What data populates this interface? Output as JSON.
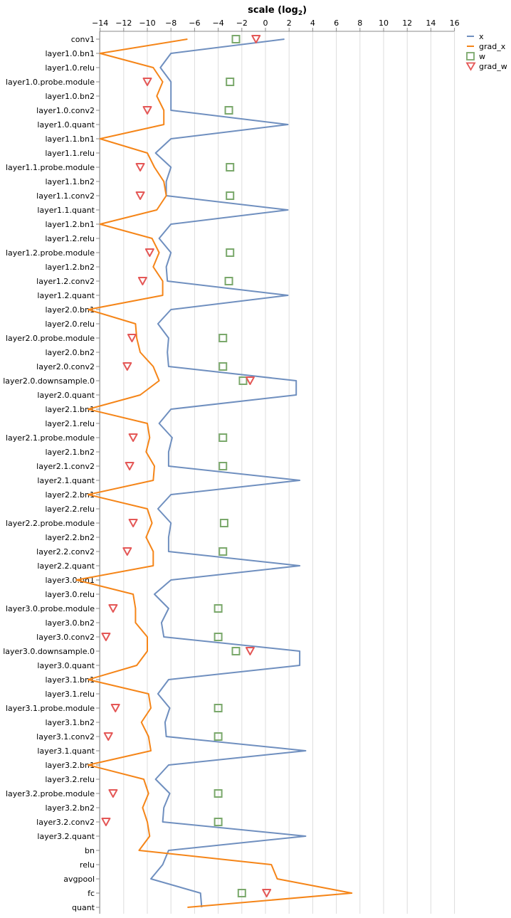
{
  "chart_data": {
    "type": "line",
    "title": "",
    "xlabel": "scale (log₂)",
    "xlabel_base": "scale (log",
    "xlabel_sub": "2",
    "xlabel_end": ")",
    "ylabel": "",
    "xlim": [
      -15,
      16
    ],
    "x_ticks": [
      -14,
      -12,
      -10,
      -8,
      -6,
      -4,
      -2,
      0,
      2,
      4,
      6,
      8,
      10,
      12,
      14,
      16
    ],
    "x_tick_labels": [
      "−14",
      "−12",
      "−10",
      "−8",
      "−6",
      "−4",
      "−2",
      "0",
      "2",
      "4",
      "6",
      "8",
      "10",
      "12",
      "14",
      "16"
    ],
    "grid": true,
    "legend_position": "top-right",
    "categories": [
      "conv1",
      "layer1.0.bn1",
      "layer1.0.relu",
      "layer1.0.probe.module",
      "layer1.0.bn2",
      "layer1.0.conv2",
      "layer1.0.quant",
      "layer1.1.bn1",
      "layer1.1.relu",
      "layer1.1.probe.module",
      "layer1.1.bn2",
      "layer1.1.conv2",
      "layer1.1.quant",
      "layer1.2.bn1",
      "layer1.2.relu",
      "layer1.2.probe.module",
      "layer1.2.bn2",
      "layer1.2.conv2",
      "layer1.2.quant",
      "layer2.0.bn1",
      "layer2.0.relu",
      "layer2.0.probe.module",
      "layer2.0.bn2",
      "layer2.0.conv2",
      "layer2.0.downsample.0",
      "layer2.0.quant",
      "layer2.1.bn1",
      "layer2.1.relu",
      "layer2.1.probe.module",
      "layer2.1.bn2",
      "layer2.1.conv2",
      "layer2.1.quant",
      "layer2.2.bn1",
      "layer2.2.relu",
      "layer2.2.probe.module",
      "layer2.2.bn2",
      "layer2.2.conv2",
      "layer2.2.quant",
      "layer3.0.bn1",
      "layer3.0.relu",
      "layer3.0.probe.module",
      "layer3.0.bn2",
      "layer3.0.conv2",
      "layer3.0.downsample.0",
      "layer3.0.quant",
      "layer3.1.bn1",
      "layer3.1.relu",
      "layer3.1.probe.module",
      "layer3.1.bn2",
      "layer3.1.conv2",
      "layer3.1.quant",
      "layer3.2.bn1",
      "layer3.2.relu",
      "layer3.2.probe.module",
      "layer3.2.bn2",
      "layer3.2.conv2",
      "layer3.2.quant",
      "bn",
      "relu",
      "avgpool",
      "fc",
      "quant"
    ],
    "series": [
      {
        "name": "x",
        "color": "#6f8fbf",
        "mark": "line",
        "values": [
          1.6,
          -8.0,
          -8.9,
          -8.0,
          -8.0,
          -8.0,
          1.9,
          -8.0,
          -9.3,
          -8.0,
          -8.4,
          -8.4,
          1.9,
          -8.0,
          -9.0,
          -8.0,
          -8.4,
          -8.3,
          1.9,
          -8.0,
          -9.1,
          -8.2,
          -8.3,
          -8.2,
          2.6,
          2.6,
          -8.0,
          -9.0,
          -7.9,
          -8.2,
          -8.2,
          2.9,
          -8.0,
          -9.1,
          -8.0,
          -8.2,
          -8.2,
          2.9,
          -8.0,
          -9.4,
          -8.2,
          -8.8,
          -8.6,
          2.9,
          2.9,
          -8.2,
          -9.1,
          -8.1,
          -8.5,
          -8.4,
          3.4,
          -8.2,
          -9.3,
          -8.1,
          -8.6,
          -8.7,
          3.4,
          -8.2,
          -8.7,
          -9.7,
          -5.5,
          -5.4
        ]
      },
      {
        "name": "grad_x",
        "color": "#f58518",
        "mark": "line",
        "values": [
          -6.6,
          -14.0,
          -9.5,
          -8.7,
          -9.2,
          -8.6,
          -8.6,
          -14.0,
          -10.0,
          -9.4,
          -8.6,
          -8.4,
          -9.2,
          -14.0,
          -9.6,
          -9.0,
          -9.5,
          -8.7,
          -8.7,
          -15.0,
          -11.0,
          -10.9,
          -10.6,
          -9.5,
          -9.0,
          -10.6,
          -15.0,
          -10.0,
          -9.8,
          -10.1,
          -9.4,
          -9.5,
          -15.0,
          -10.0,
          -9.6,
          -10.1,
          -9.5,
          -9.5,
          -16.0,
          -11.2,
          -11.0,
          -11.0,
          -10.0,
          -10.0,
          -10.9,
          -15.0,
          -9.9,
          -9.7,
          -10.5,
          -9.9,
          -9.7,
          -15.0,
          -10.3,
          -9.9,
          -10.4,
          -10.0,
          -9.8,
          -10.7,
          0.5,
          1.0,
          7.3,
          -6.6
        ]
      },
      {
        "name": "w",
        "color": "#7aa86b",
        "mark": "square",
        "points": [
          {
            "y": "conv1",
            "x": -2.5
          },
          {
            "y": "layer1.0.probe.module",
            "x": -3.0
          },
          {
            "y": "layer1.0.conv2",
            "x": -3.1
          },
          {
            "y": "layer1.1.probe.module",
            "x": -3.0
          },
          {
            "y": "layer1.1.conv2",
            "x": -3.0
          },
          {
            "y": "layer1.2.probe.module",
            "x": -3.0
          },
          {
            "y": "layer1.2.conv2",
            "x": -3.1
          },
          {
            "y": "layer2.0.probe.module",
            "x": -3.6
          },
          {
            "y": "layer2.0.conv2",
            "x": -3.6
          },
          {
            "y": "layer2.0.downsample.0",
            "x": -1.9
          },
          {
            "y": "layer2.1.probe.module",
            "x": -3.6
          },
          {
            "y": "layer2.1.conv2",
            "x": -3.6
          },
          {
            "y": "layer2.2.probe.module",
            "x": -3.5
          },
          {
            "y": "layer2.2.conv2",
            "x": -3.6
          },
          {
            "y": "layer3.0.probe.module",
            "x": -4.0
          },
          {
            "y": "layer3.0.conv2",
            "x": -4.0
          },
          {
            "y": "layer3.0.downsample.0",
            "x": -2.5
          },
          {
            "y": "layer3.1.probe.module",
            "x": -4.0
          },
          {
            "y": "layer3.1.conv2",
            "x": -4.0
          },
          {
            "y": "layer3.2.probe.module",
            "x": -4.0
          },
          {
            "y": "layer3.2.conv2",
            "x": -4.0
          },
          {
            "y": "fc",
            "x": -2.0
          }
        ]
      },
      {
        "name": "grad_w",
        "color": "#e45756",
        "mark": "triangle-down",
        "points": [
          {
            "y": "conv1",
            "x": -0.8
          },
          {
            "y": "layer1.0.probe.module",
            "x": -10.0
          },
          {
            "y": "layer1.0.conv2",
            "x": -10.0
          },
          {
            "y": "layer1.1.probe.module",
            "x": -10.6
          },
          {
            "y": "layer1.1.conv2",
            "x": -10.6
          },
          {
            "y": "layer1.2.probe.module",
            "x": -9.8
          },
          {
            "y": "layer1.2.conv2",
            "x": -10.4
          },
          {
            "y": "layer2.0.probe.module",
            "x": -11.3
          },
          {
            "y": "layer2.0.conv2",
            "x": -11.7
          },
          {
            "y": "layer2.0.downsample.0",
            "x": -1.3
          },
          {
            "y": "layer2.1.probe.module",
            "x": -11.2
          },
          {
            "y": "layer2.1.conv2",
            "x": -11.5
          },
          {
            "y": "layer2.2.probe.module",
            "x": -11.2
          },
          {
            "y": "layer2.2.conv2",
            "x": -11.7
          },
          {
            "y": "layer3.0.probe.module",
            "x": -12.9
          },
          {
            "y": "layer3.0.conv2",
            "x": -13.5
          },
          {
            "y": "layer3.0.downsample.0",
            "x": -1.3
          },
          {
            "y": "layer3.1.probe.module",
            "x": -12.7
          },
          {
            "y": "layer3.1.conv2",
            "x": -13.3
          },
          {
            "y": "layer3.2.probe.module",
            "x": -12.9
          },
          {
            "y": "layer3.2.conv2",
            "x": -13.5
          },
          {
            "y": "fc",
            "x": 0.1
          }
        ]
      }
    ]
  }
}
